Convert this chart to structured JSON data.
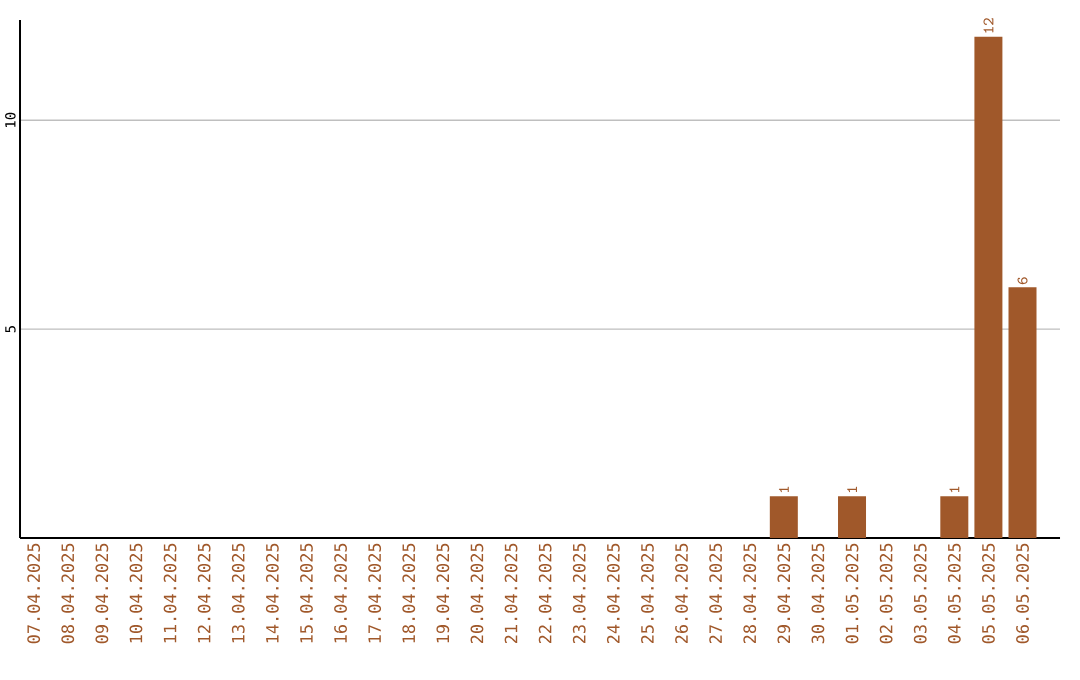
{
  "chart_data": {
    "type": "bar",
    "categories": [
      "07.04.2025",
      "08.04.2025",
      "09.04.2025",
      "10.04.2025",
      "11.04.2025",
      "12.04.2025",
      "13.04.2025",
      "14.04.2025",
      "15.04.2025",
      "16.04.2025",
      "17.04.2025",
      "18.04.2025",
      "19.04.2025",
      "20.04.2025",
      "21.04.2025",
      "22.04.2025",
      "23.04.2025",
      "24.04.2025",
      "25.04.2025",
      "26.04.2025",
      "27.04.2025",
      "28.04.2025",
      "29.04.2025",
      "30.04.2025",
      "01.05.2025",
      "02.05.2025",
      "03.05.2025",
      "04.05.2025",
      "05.05.2025",
      "06.05.2025"
    ],
    "values": [
      0,
      0,
      0,
      0,
      0,
      0,
      0,
      0,
      0,
      0,
      0,
      0,
      0,
      0,
      0,
      0,
      0,
      0,
      0,
      0,
      0,
      0,
      1,
      0,
      1,
      0,
      0,
      1,
      12,
      6
    ],
    "value_labels": [
      null,
      null,
      null,
      null,
      null,
      null,
      null,
      null,
      null,
      null,
      null,
      null,
      null,
      null,
      null,
      null,
      null,
      null,
      null,
      null,
      null,
      null,
      "1",
      null,
      "1",
      null,
      null,
      "1",
      "12",
      "6"
    ],
    "color": "#a0582a",
    "ylim": [
      0,
      12.4
    ],
    "yticks": [
      5,
      10
    ],
    "grid": "y"
  }
}
